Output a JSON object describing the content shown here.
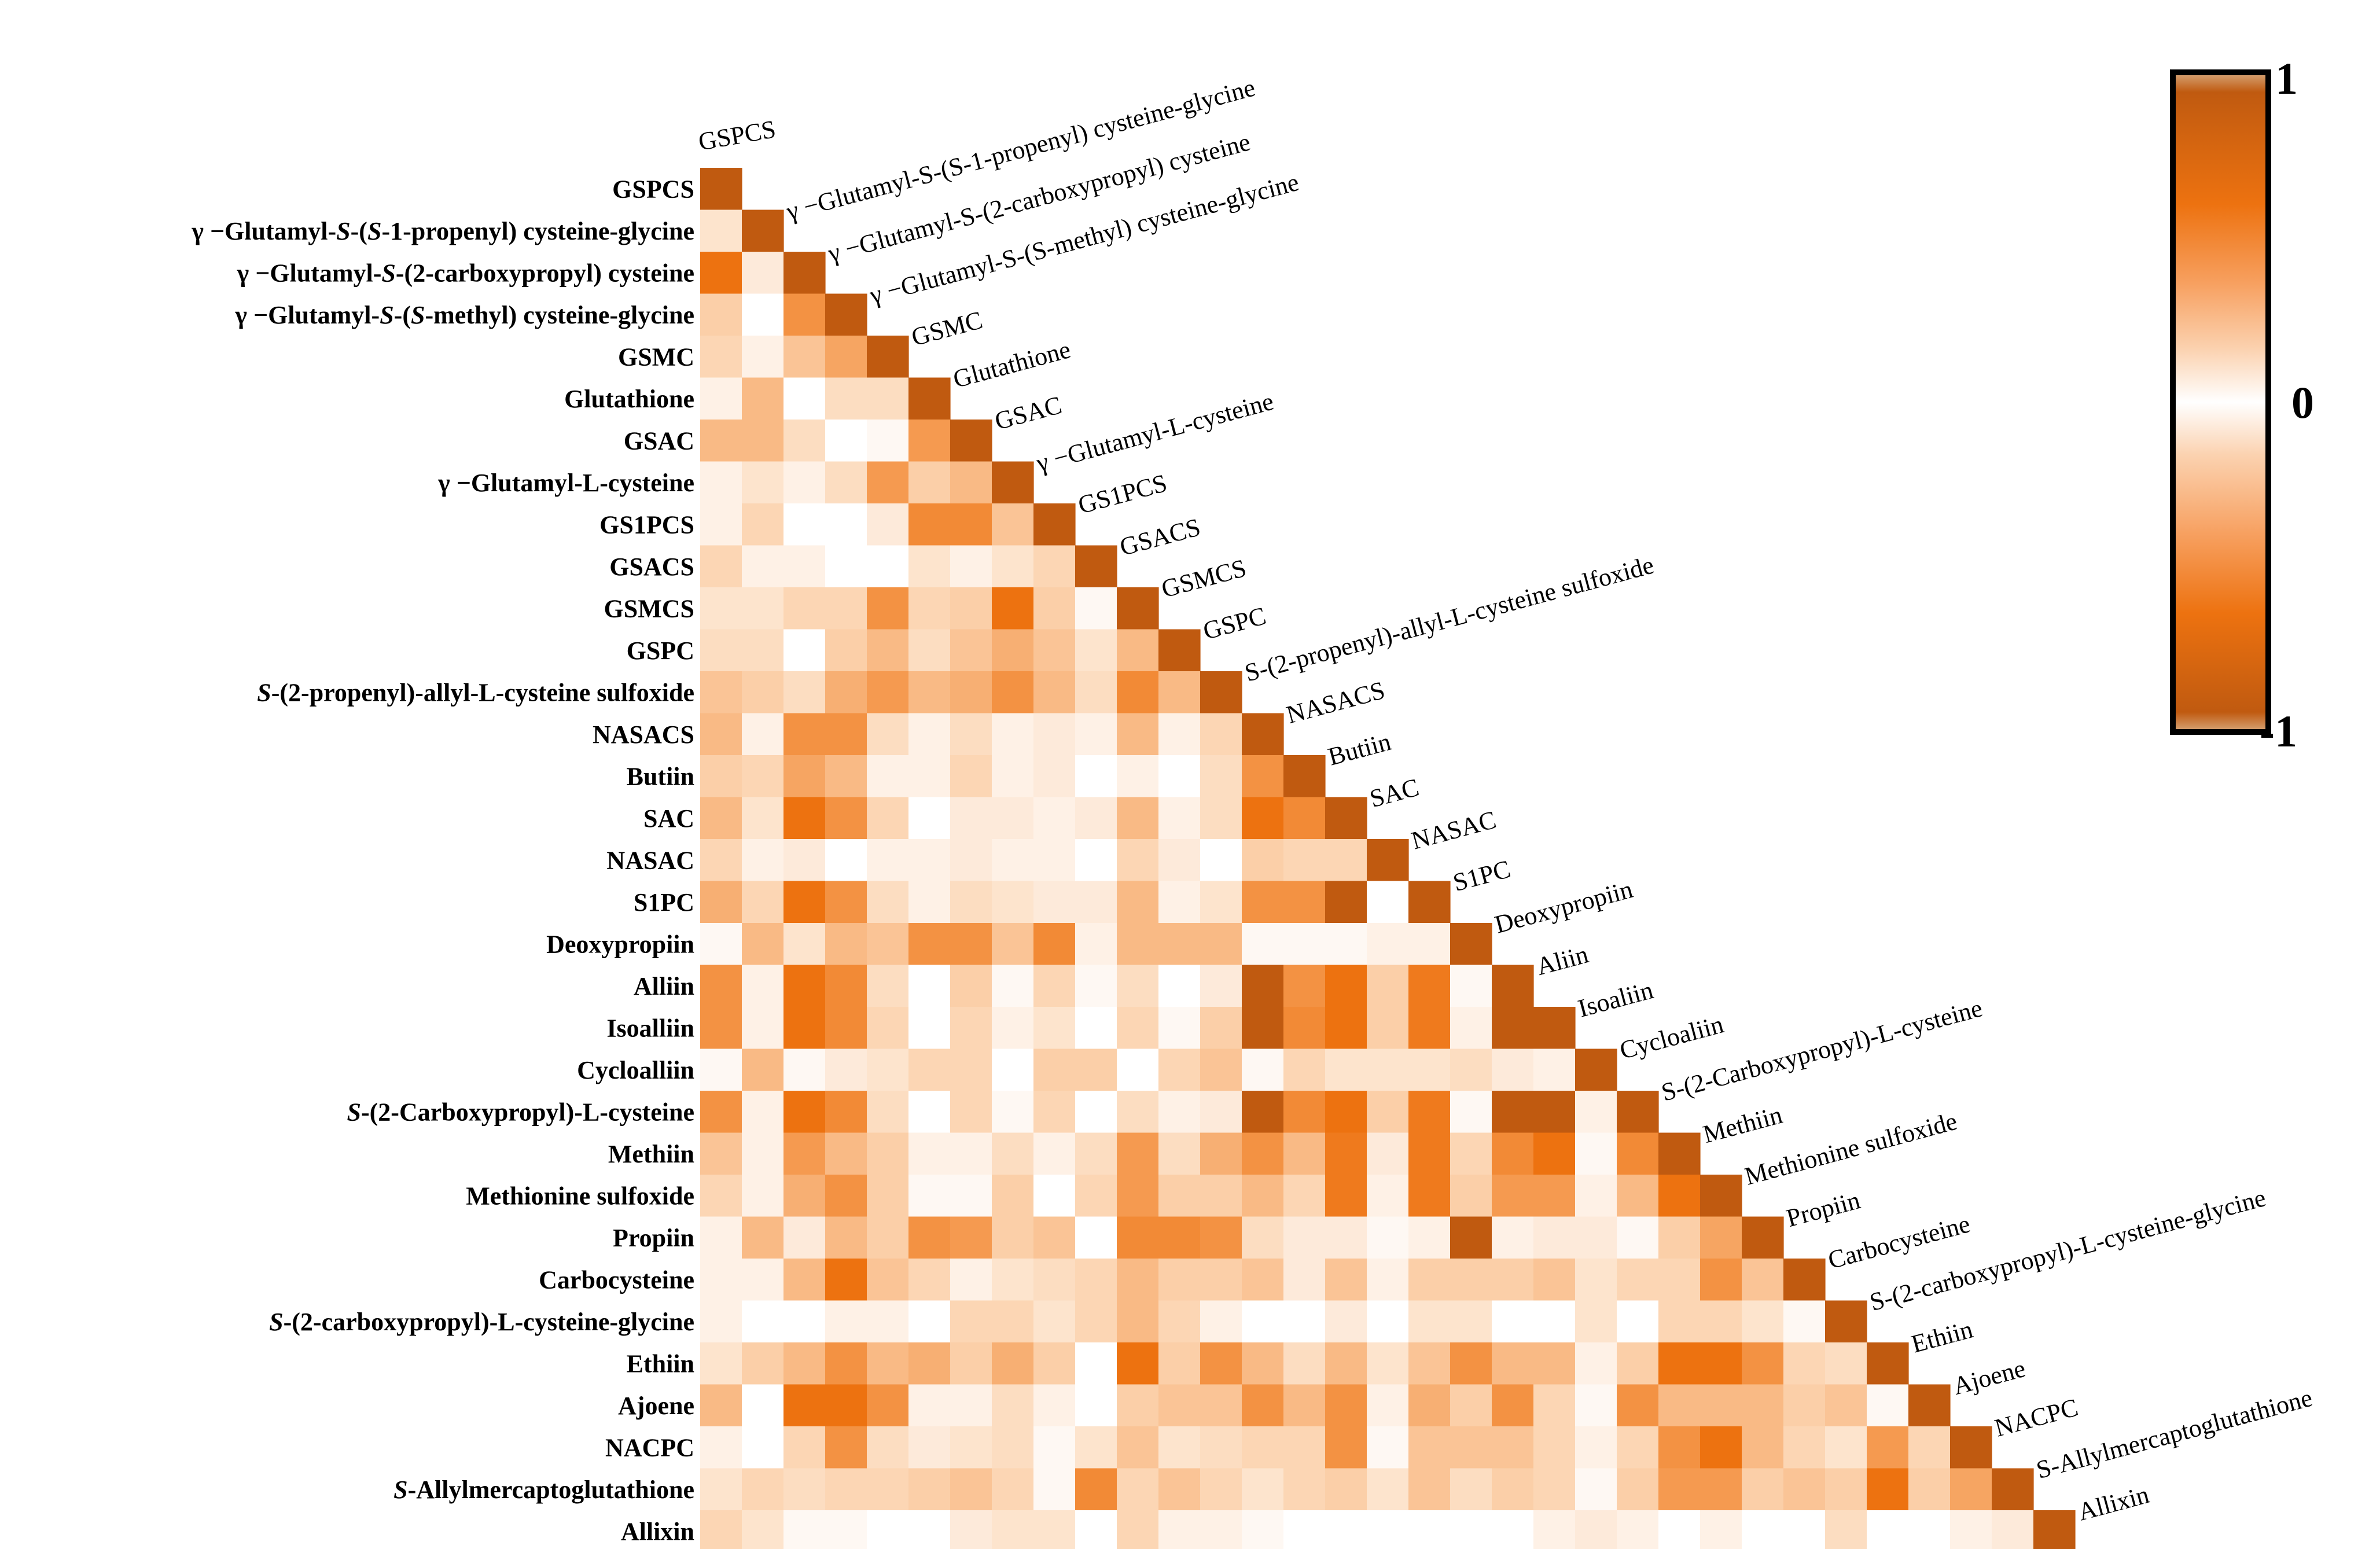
{
  "chart_data": {
    "type": "heatmap",
    "title": "",
    "xlabel": "",
    "ylabel": "",
    "layout": "lower-triangle",
    "color_scale": {
      "min": -1,
      "max": 1,
      "ticks": [
        "1",
        "0",
        "-1"
      ],
      "colors": {
        "positive": "#c05a10",
        "mid": "#ffffff",
        "strong": "#ed7210"
      }
    },
    "labels": [
      {
        "main": "GSPCS"
      },
      {
        "pre": "γ −Glutamyl-",
        "it": "S",
        "mid": "-(",
        "it2": "S",
        "post": "-1-propenyl) cysteine-glycine"
      },
      {
        "pre": "γ −Glutamyl-",
        "it": "S",
        "post": "-(2-carboxypropyl) cysteine"
      },
      {
        "pre": "γ −Glutamyl-",
        "it": "S",
        "mid": "-(",
        "it2": "S",
        "post": "-methyl) cysteine-glycine"
      },
      {
        "main": "GSMC"
      },
      {
        "main": "Glutathione"
      },
      {
        "main": "GSAC"
      },
      {
        "pre": "γ −Glutamyl-L-cysteine"
      },
      {
        "main": "GS1PCS"
      },
      {
        "main": "GSACS"
      },
      {
        "main": "GSMCS"
      },
      {
        "main": "GSPC"
      },
      {
        "it": "S",
        "post": "-(2-propenyl)-allyl-L-cysteine sulfoxide"
      },
      {
        "main": "NASACS"
      },
      {
        "main": "Butiin"
      },
      {
        "main": "SAC"
      },
      {
        "main": "NASAC"
      },
      {
        "main": "S1PC"
      },
      {
        "main": "Deoxypropiin"
      },
      {
        "main": "Alliin"
      },
      {
        "main": "Isoalliin"
      },
      {
        "main": "Cycloalliin"
      },
      {
        "it": "S",
        "post": "-(2-Carboxypropyl)-L-cysteine"
      },
      {
        "main": "Methiin"
      },
      {
        "main": "Methionine sulfoxide"
      },
      {
        "main": "Propiin"
      },
      {
        "main": "Carbocysteine"
      },
      {
        "it": "S",
        "post": "-(2-carboxypropyl)-L-cysteine-glycine"
      },
      {
        "main": "Ethiin"
      },
      {
        "main": "Ajoene"
      },
      {
        "main": "NACPC"
      },
      {
        "it": "S",
        "post": "-Allylmercaptoglutathione"
      },
      {
        "main": "Allixin"
      }
    ],
    "col_labels": [
      "GSPCS",
      "γ −Glutamyl-S-(S-1-propenyl) cysteine-glycine",
      "γ −Glutamyl-S-(2-carboxypropyl) cysteine",
      "γ −Glutamyl-S-(S-methyl) cysteine-glycine",
      "GSMC",
      "Glutathione",
      "GSAC",
      "γ −Glutamyl-L-cysteine",
      "GS1PCS",
      "GSACS",
      "GSMCS",
      "GSPC",
      "S-(2-propenyl)-allyl-L-cysteine sulfoxide",
      "NASACS",
      "Butiin",
      "SAC",
      "NASAC",
      "S1PC",
      "Deoxypropiin",
      "Aliin",
      "Isoaliin",
      "Cycloaliin",
      "S-(2-Carboxypropyl)-L-cysteine",
      "Methiin",
      "Methionine sulfoxide",
      "Propiin",
      "Carbocysteine",
      "S-(2-carboxypropyl)-L-cysteine-glycine",
      "Ethiin",
      "Ajoene",
      "NACPC",
      "S-Allylmercaptoglutathione",
      "Allixin"
    ],
    "values": [
      [
        1
      ],
      [
        0.2,
        1
      ],
      [
        -0.9,
        0.15,
        1
      ],
      [
        0.35,
        0,
        -0.65,
        1
      ],
      [
        0.3,
        0.1,
        0.4,
        0.55,
        1
      ],
      [
        0.1,
        0.45,
        0,
        0.25,
        0.25,
        1
      ],
      [
        0.45,
        0.45,
        0.25,
        0,
        0.05,
        -0.6,
        1
      ],
      [
        0.1,
        0.2,
        0.1,
        0.25,
        -0.6,
        0.35,
        0.45,
        1
      ],
      [
        0.1,
        0.3,
        0,
        0,
        0.15,
        -0.7,
        -0.7,
        0.4,
        1
      ],
      [
        0.3,
        0.1,
        0.1,
        0,
        0,
        0.2,
        0.1,
        0.2,
        0.3,
        1
      ],
      [
        0.2,
        0.2,
        0.3,
        0.3,
        -0.65,
        0.3,
        0.35,
        -0.9,
        0.35,
        0.05,
        1
      ],
      [
        0.25,
        0.25,
        0,
        0.35,
        0.45,
        0.25,
        0.4,
        0.5,
        0.4,
        0.2,
        0.45,
        1
      ],
      [
        0.4,
        0.35,
        0.25,
        0.5,
        -0.6,
        0.45,
        0.5,
        -0.65,
        0.45,
        0.25,
        -0.7,
        0.45,
        1
      ],
      [
        0.45,
        0.1,
        -0.65,
        -0.65,
        0.25,
        0.1,
        0.25,
        0.1,
        0.15,
        0.1,
        0.45,
        0.1,
        0.3,
        1
      ],
      [
        0.35,
        0.3,
        0.55,
        0.45,
        0.1,
        0.1,
        0.3,
        0.1,
        0.15,
        0,
        0.1,
        0,
        0.25,
        0.65,
        1
      ],
      [
        0.45,
        0.2,
        -0.85,
        -0.65,
        0.3,
        0,
        0.15,
        0.15,
        0.1,
        0.15,
        0.45,
        0.1,
        0.25,
        -0.85,
        -0.7,
        1
      ],
      [
        0.3,
        0.1,
        0.15,
        0,
        0.1,
        0.1,
        0.15,
        0.1,
        0.1,
        0,
        0.3,
        0.15,
        0,
        0.35,
        0.3,
        0.3,
        1
      ],
      [
        0.5,
        0.3,
        -0.85,
        -0.65,
        0.25,
        0.1,
        0.25,
        0.2,
        0.15,
        0.15,
        0.45,
        0.1,
        0.2,
        -0.65,
        -0.65,
        0.95,
        0,
        1
      ],
      [
        0.05,
        0.45,
        0.2,
        0.45,
        0.4,
        -0.65,
        -0.65,
        0.4,
        -0.7,
        0.1,
        0.45,
        0.45,
        0.45,
        0.05,
        0.05,
        0.05,
        0.1,
        0.1,
        1
      ],
      [
        0.65,
        0.1,
        -0.85,
        -0.7,
        0.25,
        0,
        0.35,
        0.05,
        0.3,
        0.05,
        0.25,
        0,
        0.15,
        0.95,
        -0.65,
        -0.85,
        0.35,
        -0.8,
        0.05,
        1
      ],
      [
        0.65,
        0.1,
        -0.85,
        -0.7,
        0.3,
        0,
        0.3,
        0.1,
        0.2,
        0,
        0.3,
        0.05,
        0.35,
        0.95,
        -0.7,
        -0.85,
        0.35,
        -0.8,
        0.1,
        0.95,
        1
      ],
      [
        0.05,
        0.45,
        0.05,
        0.15,
        0.2,
        0.3,
        0.3,
        0,
        0.35,
        0.35,
        0,
        0.3,
        0.4,
        0.05,
        0.3,
        0.2,
        0.2,
        0.2,
        0.25,
        0.15,
        0.1,
        1
      ],
      [
        0.65,
        0.1,
        -0.85,
        -0.7,
        0.25,
        0,
        0.3,
        0.05,
        0.3,
        0,
        0.25,
        0.1,
        0.15,
        0.95,
        -0.7,
        -0.85,
        0.35,
        -0.8,
        0.05,
        0.95,
        0.95,
        0.1,
        1
      ],
      [
        0.4,
        0.1,
        -0.6,
        0.45,
        0.35,
        0.1,
        0.1,
        0.25,
        0.1,
        0.25,
        -0.6,
        0.25,
        0.5,
        -0.65,
        0.45,
        -0.8,
        0.15,
        -0.8,
        0.3,
        -0.7,
        -0.9,
        0.05,
        -0.7,
        1
      ],
      [
        0.3,
        0.1,
        0.5,
        -0.65,
        0.35,
        0.05,
        0.05,
        0.35,
        0,
        0.3,
        -0.6,
        0.35,
        0.35,
        0.45,
        0.3,
        -0.8,
        0.1,
        -0.8,
        0.35,
        -0.6,
        -0.6,
        0.1,
        0.45,
        -0.85,
        1
      ],
      [
        0.1,
        0.45,
        0.15,
        0.45,
        0.35,
        -0.65,
        -0.6,
        0.35,
        0.4,
        0,
        -0.7,
        -0.7,
        -0.65,
        0.25,
        0.15,
        0.15,
        0.05,
        0.1,
        0.95,
        0.1,
        0.15,
        0.15,
        0.05,
        0.35,
        0.55,
        1
      ],
      [
        0.1,
        0.1,
        0.45,
        -0.85,
        0.4,
        0.3,
        0.1,
        0.2,
        0.25,
        0.3,
        0.45,
        0.35,
        0.35,
        0.4,
        0.15,
        0.4,
        0.1,
        0.35,
        0.35,
        0.35,
        0.4,
        0.2,
        0.3,
        0.3,
        -0.65,
        0.4,
        1
      ],
      [
        0.1,
        0,
        0,
        0.1,
        0.1,
        0,
        0.3,
        0.3,
        0.2,
        0.3,
        0.45,
        0.3,
        0.1,
        0,
        0,
        0.15,
        0,
        0.2,
        0.2,
        0,
        0,
        0.2,
        0,
        0.3,
        0.3,
        0.2,
        0.05,
        1
      ],
      [
        0.2,
        0.35,
        0.45,
        -0.65,
        0.45,
        0.5,
        0.35,
        0.5,
        0.35,
        0,
        -0.85,
        0.35,
        -0.65,
        0.45,
        0.25,
        0.45,
        0.2,
        0.4,
        -0.65,
        0.45,
        0.45,
        0.1,
        0.35,
        -0.85,
        -0.85,
        -0.65,
        0.3,
        0.25,
        1
      ],
      [
        0.45,
        0,
        -0.85,
        -0.85,
        -0.65,
        0.1,
        0.1,
        0.25,
        0.1,
        0,
        0.35,
        0.4,
        0.4,
        -0.65,
        0.45,
        -0.65,
        0.1,
        0.5,
        0.35,
        -0.65,
        0.3,
        0.05,
        -0.65,
        0.45,
        0.45,
        0.45,
        0.35,
        0.4,
        0.05,
        1
      ],
      [
        0.1,
        0,
        0.3,
        -0.65,
        0.25,
        0.15,
        0.2,
        0.25,
        0.05,
        0.2,
        0.4,
        0.2,
        0.25,
        0.3,
        0.3,
        -0.65,
        0.05,
        0.4,
        0.4,
        0.4,
        0.3,
        0.1,
        0.3,
        -0.65,
        -0.85,
        0.45,
        0.3,
        0.2,
        -0.6,
        0.3,
        1
      ],
      [
        0.2,
        0.3,
        0.25,
        0.3,
        0.3,
        0.35,
        0.4,
        0.3,
        0.05,
        -0.7,
        0.3,
        0.4,
        0.3,
        0.2,
        0.3,
        0.35,
        0.2,
        0.4,
        0.25,
        0.35,
        0.3,
        0.05,
        0.35,
        -0.6,
        -0.6,
        0.35,
        0.4,
        0.35,
        -0.85,
        0.35,
        -0.55,
        1
      ],
      [
        0.3,
        0.2,
        0.05,
        0.05,
        0,
        0,
        0.15,
        0.2,
        0.2,
        0,
        0.3,
        0.1,
        0.1,
        0.05,
        0,
        0,
        0,
        0,
        0,
        0,
        0.1,
        0.15,
        0.1,
        0,
        0.1,
        0,
        0,
        0.25,
        0,
        0,
        0.1,
        0.15,
        1
      ]
    ]
  }
}
